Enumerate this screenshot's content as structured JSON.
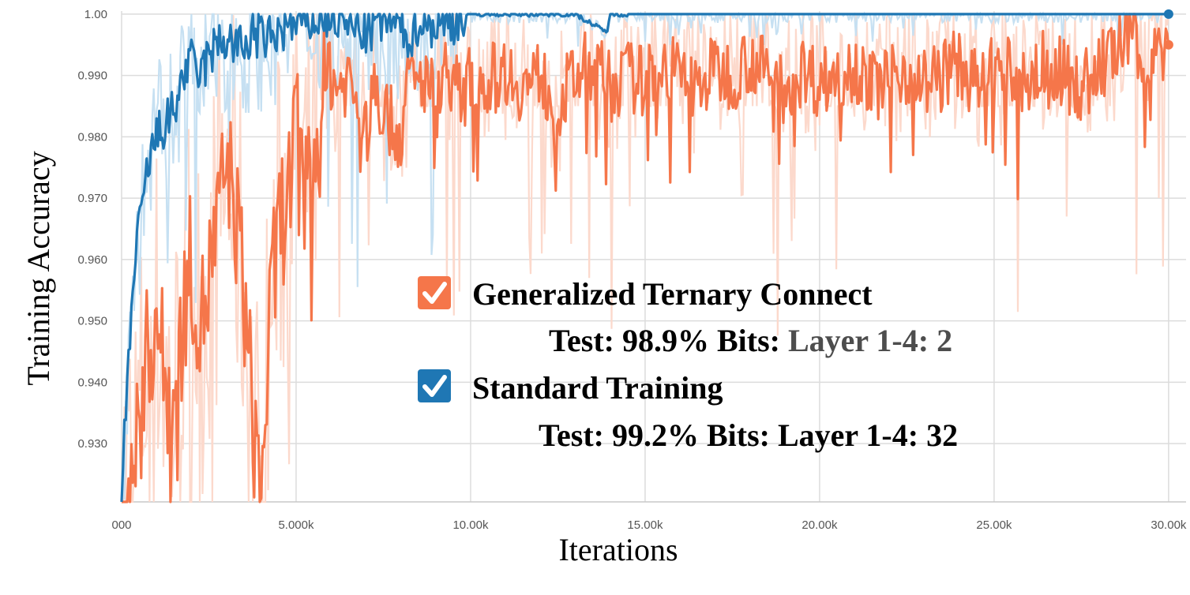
{
  "chart_data": {
    "type": "line",
    "title": "",
    "xlabel": "Iterations",
    "ylabel": "Training Accuracy",
    "xlim": [
      0,
      30500
    ],
    "ylim": [
      0.9205,
      1.0005
    ],
    "grid": true,
    "x_ticks": [
      0,
      5000,
      10000,
      15000,
      20000,
      25000,
      30000
    ],
    "x_tick_labels": [
      "000",
      "5.000k",
      "10.00k",
      "15.00k",
      "20.00k",
      "25.00k",
      "30.00k"
    ],
    "y_ticks": [
      0.93,
      0.94,
      0.95,
      0.96,
      0.97,
      0.98,
      0.99,
      1.0
    ],
    "y_tick_labels": [
      "0.930",
      "0.940",
      "0.950",
      "0.960",
      "0.970",
      "0.980",
      "0.990",
      "1.00"
    ],
    "legend_placement": "center",
    "legend": [
      {
        "name": "Generalized Ternary Connect",
        "test_label": "Test:",
        "test_value": "98.9%",
        "bits_label": "Bits:",
        "bits_value": "Layer 1-4: 2",
        "color": "#f5764a"
      },
      {
        "name": "Standard Training",
        "test_label": "Test:",
        "test_value": "99.2%",
        "bits_label": "Bits:",
        "bits_value": "Layer 1-4: 32",
        "color": "#1f77b4"
      }
    ],
    "series": [
      {
        "name": "Generalized Ternary Connect",
        "color": "#f5764a",
        "raw_color": "#fcd9cc",
        "x": [
          0,
          250,
          500,
          750,
          1000,
          1250,
          1500,
          1750,
          2000,
          2250,
          2500,
          2750,
          3000,
          3250,
          3500,
          3750,
          4000,
          4250,
          4500,
          4750,
          5000,
          5250,
          5500,
          5750,
          6000,
          6250,
          6500,
          6750,
          7000,
          7250,
          7500,
          7750,
          8000,
          8250,
          8500,
          8750,
          9000,
          9250,
          9500,
          9750,
          10000,
          10500,
          11000,
          11500,
          12000,
          12500,
          13000,
          13500,
          14000,
          14500,
          15000,
          15500,
          16000,
          16500,
          17000,
          17500,
          18000,
          18500,
          19000,
          19500,
          20000,
          20500,
          21000,
          21500,
          22000,
          22500,
          23000,
          23500,
          24000,
          24500,
          25000,
          25500,
          26000,
          26500,
          27000,
          27500,
          28000,
          28500,
          29000,
          29500,
          30000
        ],
        "values": [
          0.921,
          0.925,
          0.933,
          0.945,
          0.951,
          0.94,
          0.935,
          0.95,
          0.96,
          0.948,
          0.957,
          0.965,
          0.975,
          0.969,
          0.955,
          0.935,
          0.922,
          0.95,
          0.965,
          0.97,
          0.98,
          0.97,
          0.975,
          0.985,
          0.99,
          0.988,
          0.99,
          0.985,
          0.98,
          0.988,
          0.985,
          0.982,
          0.98,
          0.99,
          0.988,
          0.99,
          0.985,
          0.991,
          0.99,
          0.985,
          0.99,
          0.989,
          0.991,
          0.988,
          0.99,
          0.985,
          0.99,
          0.992,
          0.988,
          0.99,
          0.989,
          0.992,
          0.99,
          0.988,
          0.991,
          0.99,
          0.993,
          0.99,
          0.988,
          0.991,
          0.989,
          0.99,
          0.992,
          0.988,
          0.99,
          0.991,
          0.989,
          0.99,
          0.992,
          0.988,
          0.991,
          0.99,
          0.989,
          0.992,
          0.99,
          0.988,
          0.991,
          0.994,
          0.996,
          0.993,
          0.995
        ]
      },
      {
        "name": "Standard Training",
        "color": "#1f77b4",
        "raw_color": "#c6e0f2",
        "x": [
          0,
          250,
          500,
          750,
          1000,
          1250,
          1500,
          1750,
          2000,
          2250,
          2500,
          2750,
          3000,
          3250,
          3500,
          3750,
          4000,
          4250,
          4500,
          4750,
          5000,
          5250,
          5500,
          5750,
          6000,
          6500,
          7000,
          7500,
          8000,
          8300,
          8500,
          9000,
          9500,
          10000,
          11000,
          12000,
          13000,
          13900,
          14000,
          15000,
          16000,
          17000,
          18000,
          19000,
          20000,
          21000,
          22000,
          23000,
          24000,
          25000,
          26000,
          27000,
          28000,
          29000,
          30000
        ],
        "values": [
          0.921,
          0.95,
          0.965,
          0.975,
          0.98,
          0.982,
          0.984,
          0.99,
          0.992,
          0.99,
          0.993,
          0.995,
          0.996,
          0.995,
          0.994,
          0.997,
          0.996,
          0.996,
          0.997,
          0.998,
          0.998,
          0.999,
          0.999,
          0.999,
          1.0,
          0.998,
          0.997,
          0.999,
          0.998,
          0.996,
          0.999,
          0.998,
          0.999,
          1.0,
          1.0,
          1.0,
          1.0,
          0.997,
          1.0,
          1.0,
          1.0,
          1.0,
          1.0,
          1.0,
          1.0,
          1.0,
          1.0,
          1.0,
          1.0,
          1.0,
          1.0,
          1.0,
          1.0,
          1.0,
          1.0
        ]
      }
    ]
  }
}
